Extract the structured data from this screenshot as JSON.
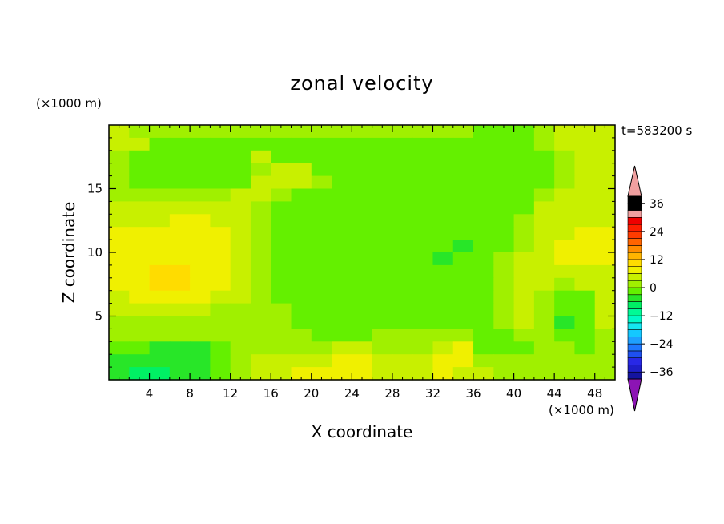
{
  "chart_data": {
    "type": "heatmap",
    "title": "zonal velocity",
    "xlabel": "X coordinate",
    "ylabel": "Z coordinate",
    "x_unit_label": "(×1000 m)",
    "y_unit_label": "(×1000 m)",
    "time_label": "t=583200 s",
    "xlim": [
      0,
      50
    ],
    "ylim": [
      0,
      20
    ],
    "x_ticks": [
      4,
      8,
      12,
      16,
      20,
      24,
      28,
      32,
      36,
      40,
      44,
      48
    ],
    "y_ticks": [
      5,
      10,
      15
    ],
    "colorbar": {
      "levels": [
        -42,
        -39,
        -36,
        -33,
        -30,
        -27,
        -24,
        -21,
        -18,
        -15,
        -12,
        -9,
        -6,
        -3,
        0,
        3,
        6,
        9,
        12,
        15,
        18,
        21,
        24,
        27,
        30,
        33,
        36,
        39,
        42
      ],
      "colors": [
        "#6c0a9c",
        "#1414a0",
        "#1e1ec8",
        "#2828e6",
        "#1e50f0",
        "#1e78ff",
        "#1ea0ff",
        "#14c8ff",
        "#14e6f0",
        "#00fac8",
        "#00fa96",
        "#00f064",
        "#28e628",
        "#64f000",
        "#a0f000",
        "#c8f000",
        "#f0f000",
        "#ffdc00",
        "#ffb400",
        "#ff8c00",
        "#ff6400",
        "#ff3c00",
        "#ff1e00",
        "#f00000",
        "#f0a0a0"
      ],
      "labels": [
        "36",
        "24",
        "12",
        "0",
        "−12",
        "−24",
        "−36"
      ],
      "label_values": [
        36,
        24,
        12,
        0,
        -12,
        -24,
        -36
      ],
      "extend": "both",
      "over_color": "#f0a0a0",
      "under_color": "#8c14b4"
    },
    "field": {
      "x_centers": [
        1,
        3,
        5,
        7,
        9,
        11,
        13,
        15,
        17,
        19,
        21,
        23,
        25,
        27,
        29,
        31,
        33,
        35,
        37,
        39,
        41,
        43,
        45,
        47,
        49
      ],
      "z_centers": [
        19.5,
        18.5,
        17.5,
        16.5,
        15.5,
        14.5,
        13.5,
        12.5,
        11.5,
        10.5,
        9.5,
        8.5,
        7.5,
        6.5,
        5.5,
        4.5,
        3.5,
        2.5,
        1.5,
        0.5
      ],
      "values": [
        [
          3,
          1,
          1,
          1,
          1,
          1,
          1,
          1,
          1,
          1,
          1,
          1,
          1,
          1,
          1,
          1,
          1,
          1,
          -2,
          -2,
          -2,
          1,
          3,
          3,
          3
        ],
        [
          3,
          3,
          -2,
          -2,
          -2,
          -2,
          -2,
          -2,
          -2,
          -2,
          -2,
          -2,
          -2,
          -2,
          -2,
          -2,
          -2,
          -2,
          -2,
          -2,
          -2,
          1,
          3,
          3,
          3
        ],
        [
          1,
          -2,
          -2,
          -2,
          -2,
          -2,
          -2,
          3,
          -2,
          -2,
          -2,
          -2,
          -2,
          -2,
          -2,
          -2,
          -2,
          -2,
          -2,
          -2,
          -2,
          -2,
          1,
          3,
          3
        ],
        [
          1,
          -2,
          -2,
          -2,
          -2,
          -2,
          -2,
          1,
          3,
          3,
          -2,
          -2,
          -2,
          -2,
          -2,
          -2,
          -2,
          -2,
          -2,
          -2,
          -2,
          -2,
          1,
          3,
          3
        ],
        [
          1,
          -2,
          -2,
          -2,
          -2,
          -2,
          -2,
          3,
          3,
          3,
          1,
          -2,
          -2,
          -2,
          -2,
          -2,
          -2,
          -2,
          -2,
          -2,
          -2,
          -2,
          1,
          3,
          3
        ],
        [
          1,
          1,
          1,
          1,
          1,
          1,
          3,
          3,
          1,
          -2,
          -2,
          -2,
          -2,
          -2,
          -2,
          -2,
          -2,
          -2,
          -2,
          -2,
          -2,
          1,
          3,
          3,
          3
        ],
        [
          3,
          3,
          3,
          3,
          3,
          3,
          3,
          1,
          -2,
          -2,
          -2,
          -2,
          -2,
          -2,
          -2,
          -2,
          -2,
          -2,
          -2,
          -2,
          -2,
          3,
          3,
          3,
          3
        ],
        [
          3,
          3,
          3,
          6,
          6,
          3,
          3,
          1,
          -2,
          -2,
          -2,
          -2,
          -2,
          -2,
          -2,
          -2,
          -2,
          -2,
          -2,
          -2,
          1,
          3,
          3,
          3,
          3
        ],
        [
          6,
          6,
          6,
          6,
          6,
          6,
          3,
          1,
          -2,
          -2,
          -2,
          -2,
          -2,
          -2,
          -2,
          -2,
          -2,
          -2,
          -2,
          -2,
          1,
          3,
          3,
          6,
          6
        ],
        [
          6,
          6,
          6,
          6,
          6,
          6,
          3,
          1,
          -2,
          -2,
          -2,
          -2,
          -2,
          -2,
          -2,
          -2,
          -2,
          -5,
          -2,
          -2,
          1,
          3,
          6,
          6,
          6
        ],
        [
          6,
          6,
          6,
          6,
          6,
          6,
          3,
          1,
          -2,
          -2,
          -2,
          -2,
          -2,
          -2,
          -2,
          -2,
          -5,
          -2,
          -2,
          1,
          3,
          3,
          6,
          6,
          6
        ],
        [
          6,
          6,
          9,
          9,
          6,
          6,
          3,
          1,
          -2,
          -2,
          -2,
          -2,
          -2,
          -2,
          -2,
          -2,
          -2,
          -2,
          -2,
          1,
          3,
          3,
          3,
          3,
          3
        ],
        [
          6,
          6,
          9,
          9,
          6,
          6,
          3,
          1,
          -2,
          -2,
          -2,
          -2,
          -2,
          -2,
          -2,
          -2,
          -2,
          -2,
          -2,
          1,
          3,
          3,
          1,
          3,
          3
        ],
        [
          3,
          6,
          6,
          6,
          6,
          3,
          3,
          1,
          -2,
          -2,
          -2,
          -2,
          -2,
          -2,
          -2,
          -2,
          -2,
          -2,
          -2,
          1,
          3,
          1,
          -2,
          -2,
          3
        ],
        [
          3,
          3,
          3,
          3,
          3,
          1,
          1,
          1,
          1,
          -2,
          -2,
          -2,
          -2,
          -2,
          -2,
          -2,
          -2,
          -2,
          -2,
          1,
          3,
          1,
          -2,
          -2,
          3
        ],
        [
          1,
          1,
          1,
          1,
          1,
          1,
          1,
          1,
          1,
          -2,
          -2,
          -2,
          -2,
          -2,
          -2,
          -2,
          -2,
          -2,
          -2,
          1,
          3,
          1,
          -5,
          -2,
          3
        ],
        [
          1,
          1,
          1,
          1,
          1,
          1,
          1,
          1,
          1,
          1,
          -2,
          -2,
          -2,
          1,
          1,
          1,
          1,
          1,
          -2,
          -2,
          1,
          1,
          -2,
          -2,
          1
        ],
        [
          -2,
          -2,
          -5,
          -5,
          -5,
          -2,
          1,
          1,
          1,
          1,
          1,
          3,
          3,
          1,
          1,
          1,
          3,
          6,
          -2,
          -2,
          -2,
          1,
          1,
          -2,
          1
        ],
        [
          -5,
          -5,
          -5,
          -5,
          -5,
          -2,
          1,
          3,
          3,
          3,
          3,
          6,
          6,
          3,
          3,
          3,
          6,
          6,
          1,
          1,
          1,
          1,
          1,
          1,
          1
        ],
        [
          -5,
          -8,
          -8,
          -5,
          -5,
          -2,
          1,
          3,
          3,
          6,
          6,
          6,
          6,
          3,
          3,
          3,
          6,
          3,
          3,
          1,
          1,
          1,
          1,
          1,
          1
        ]
      ]
    }
  }
}
